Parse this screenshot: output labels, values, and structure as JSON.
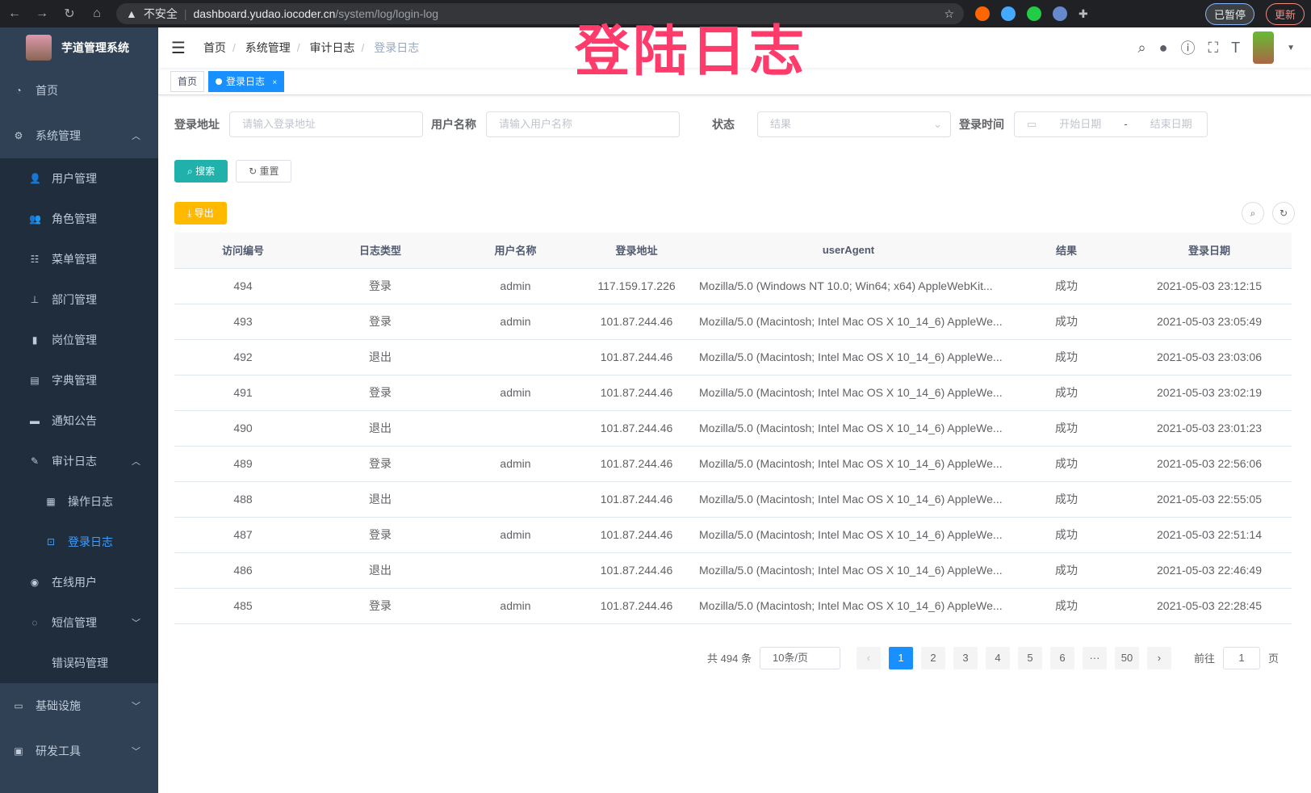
{
  "browser": {
    "warning": "不安全",
    "host": "dashboard.yudao.iocoder.cn",
    "path": "/system/log/login-log",
    "paused": "已暂停",
    "update": "更新"
  },
  "overlay_title": "登陆日志",
  "sidebar": {
    "title": "芋道管理系统",
    "items": [
      {
        "label": "首页",
        "icon": "dashboard-icon"
      },
      {
        "label": "系统管理",
        "icon": "gear-icon",
        "expanded": true
      },
      {
        "label": "用户管理",
        "icon": "user-icon"
      },
      {
        "label": "角色管理",
        "icon": "role-icon"
      },
      {
        "label": "菜单管理",
        "icon": "menu-icon"
      },
      {
        "label": "部门管理",
        "icon": "tree-icon"
      },
      {
        "label": "岗位管理",
        "icon": "post-icon"
      },
      {
        "label": "字典管理",
        "icon": "dict-icon"
      },
      {
        "label": "通知公告",
        "icon": "message-icon"
      },
      {
        "label": "审计日志",
        "icon": "edit-icon",
        "expanded": true
      },
      {
        "label": "操作日志",
        "icon": "form-icon"
      },
      {
        "label": "登录日志",
        "icon": "logininfor-icon",
        "active": true
      },
      {
        "label": "在线用户",
        "icon": "online-icon"
      },
      {
        "label": "短信管理",
        "icon": "sms-icon"
      },
      {
        "label": "错误码管理",
        "icon": "code-icon"
      },
      {
        "label": "基础设施",
        "icon": "monitor-icon"
      },
      {
        "label": "研发工具",
        "icon": "tool-icon"
      }
    ]
  },
  "breadcrumb": [
    "首页",
    "系统管理",
    "审计日志",
    "登录日志"
  ],
  "tags": [
    {
      "label": "首页"
    },
    {
      "label": "登录日志",
      "active": true
    }
  ],
  "filters": {
    "address_label": "登录地址",
    "address_placeholder": "请输入登录地址",
    "username_label": "用户名称",
    "username_placeholder": "请输入用户名称",
    "status_label": "状态",
    "status_placeholder": "结果",
    "time_label": "登录时间",
    "start_placeholder": "开始日期",
    "sep": "-",
    "end_placeholder": "结束日期"
  },
  "buttons": {
    "search": "搜索",
    "reset": "重置",
    "export": "导出"
  },
  "table": {
    "columns": [
      "访问编号",
      "日志类型",
      "用户名称",
      "登录地址",
      "userAgent",
      "结果",
      "登录日期"
    ],
    "rows": [
      [
        "494",
        "登录",
        "admin",
        "117.159.17.226",
        "Mozilla/5.0 (Windows NT 10.0; Win64; x64) AppleWebKit...",
        "成功",
        "2021-05-03 23:12:15"
      ],
      [
        "493",
        "登录",
        "admin",
        "101.87.244.46",
        "Mozilla/5.0 (Macintosh; Intel Mac OS X 10_14_6) AppleWe...",
        "成功",
        "2021-05-03 23:05:49"
      ],
      [
        "492",
        "退出",
        "",
        "101.87.244.46",
        "Mozilla/5.0 (Macintosh; Intel Mac OS X 10_14_6) AppleWe...",
        "成功",
        "2021-05-03 23:03:06"
      ],
      [
        "491",
        "登录",
        "admin",
        "101.87.244.46",
        "Mozilla/5.0 (Macintosh; Intel Mac OS X 10_14_6) AppleWe...",
        "成功",
        "2021-05-03 23:02:19"
      ],
      [
        "490",
        "退出",
        "",
        "101.87.244.46",
        "Mozilla/5.0 (Macintosh; Intel Mac OS X 10_14_6) AppleWe...",
        "成功",
        "2021-05-03 23:01:23"
      ],
      [
        "489",
        "登录",
        "admin",
        "101.87.244.46",
        "Mozilla/5.0 (Macintosh; Intel Mac OS X 10_14_6) AppleWe...",
        "成功",
        "2021-05-03 22:56:06"
      ],
      [
        "488",
        "退出",
        "",
        "101.87.244.46",
        "Mozilla/5.0 (Macintosh; Intel Mac OS X 10_14_6) AppleWe...",
        "成功",
        "2021-05-03 22:55:05"
      ],
      [
        "487",
        "登录",
        "admin",
        "101.87.244.46",
        "Mozilla/5.0 (Macintosh; Intel Mac OS X 10_14_6) AppleWe...",
        "成功",
        "2021-05-03 22:51:14"
      ],
      [
        "486",
        "退出",
        "",
        "101.87.244.46",
        "Mozilla/5.0 (Macintosh; Intel Mac OS X 10_14_6) AppleWe...",
        "成功",
        "2021-05-03 22:46:49"
      ],
      [
        "485",
        "登录",
        "admin",
        "101.87.244.46",
        "Mozilla/5.0 (Macintosh; Intel Mac OS X 10_14_6) AppleWe...",
        "成功",
        "2021-05-03 22:28:45"
      ]
    ]
  },
  "pagination": {
    "total": "共 494 条",
    "page_size": "10条/页",
    "pages": [
      "1",
      "2",
      "3",
      "4",
      "5",
      "6",
      "···",
      "50"
    ],
    "current": "1",
    "goto_label": "前往",
    "goto_value": "1",
    "goto_suffix": "页"
  }
}
